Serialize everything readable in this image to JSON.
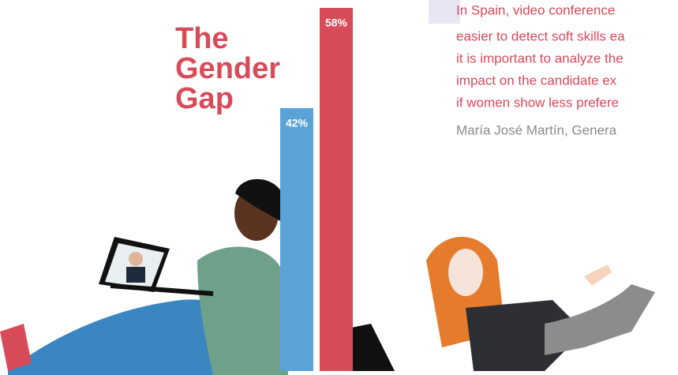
{
  "chart_data": {
    "type": "bar",
    "title": "The Gender Gap",
    "values": [
      42,
      58
    ],
    "value_labels": [
      "42%",
      "58%"
    ],
    "colors": [
      "#5ba3d6",
      "#d84c5a"
    ],
    "quote": [
      "In Spain, video conference",
      "easier to detect soft skills ea",
      "it is important to analyze the",
      "impact on the candidate ex",
      "if women show less prefere"
    ],
    "author": "María José Martín, Genera"
  }
}
